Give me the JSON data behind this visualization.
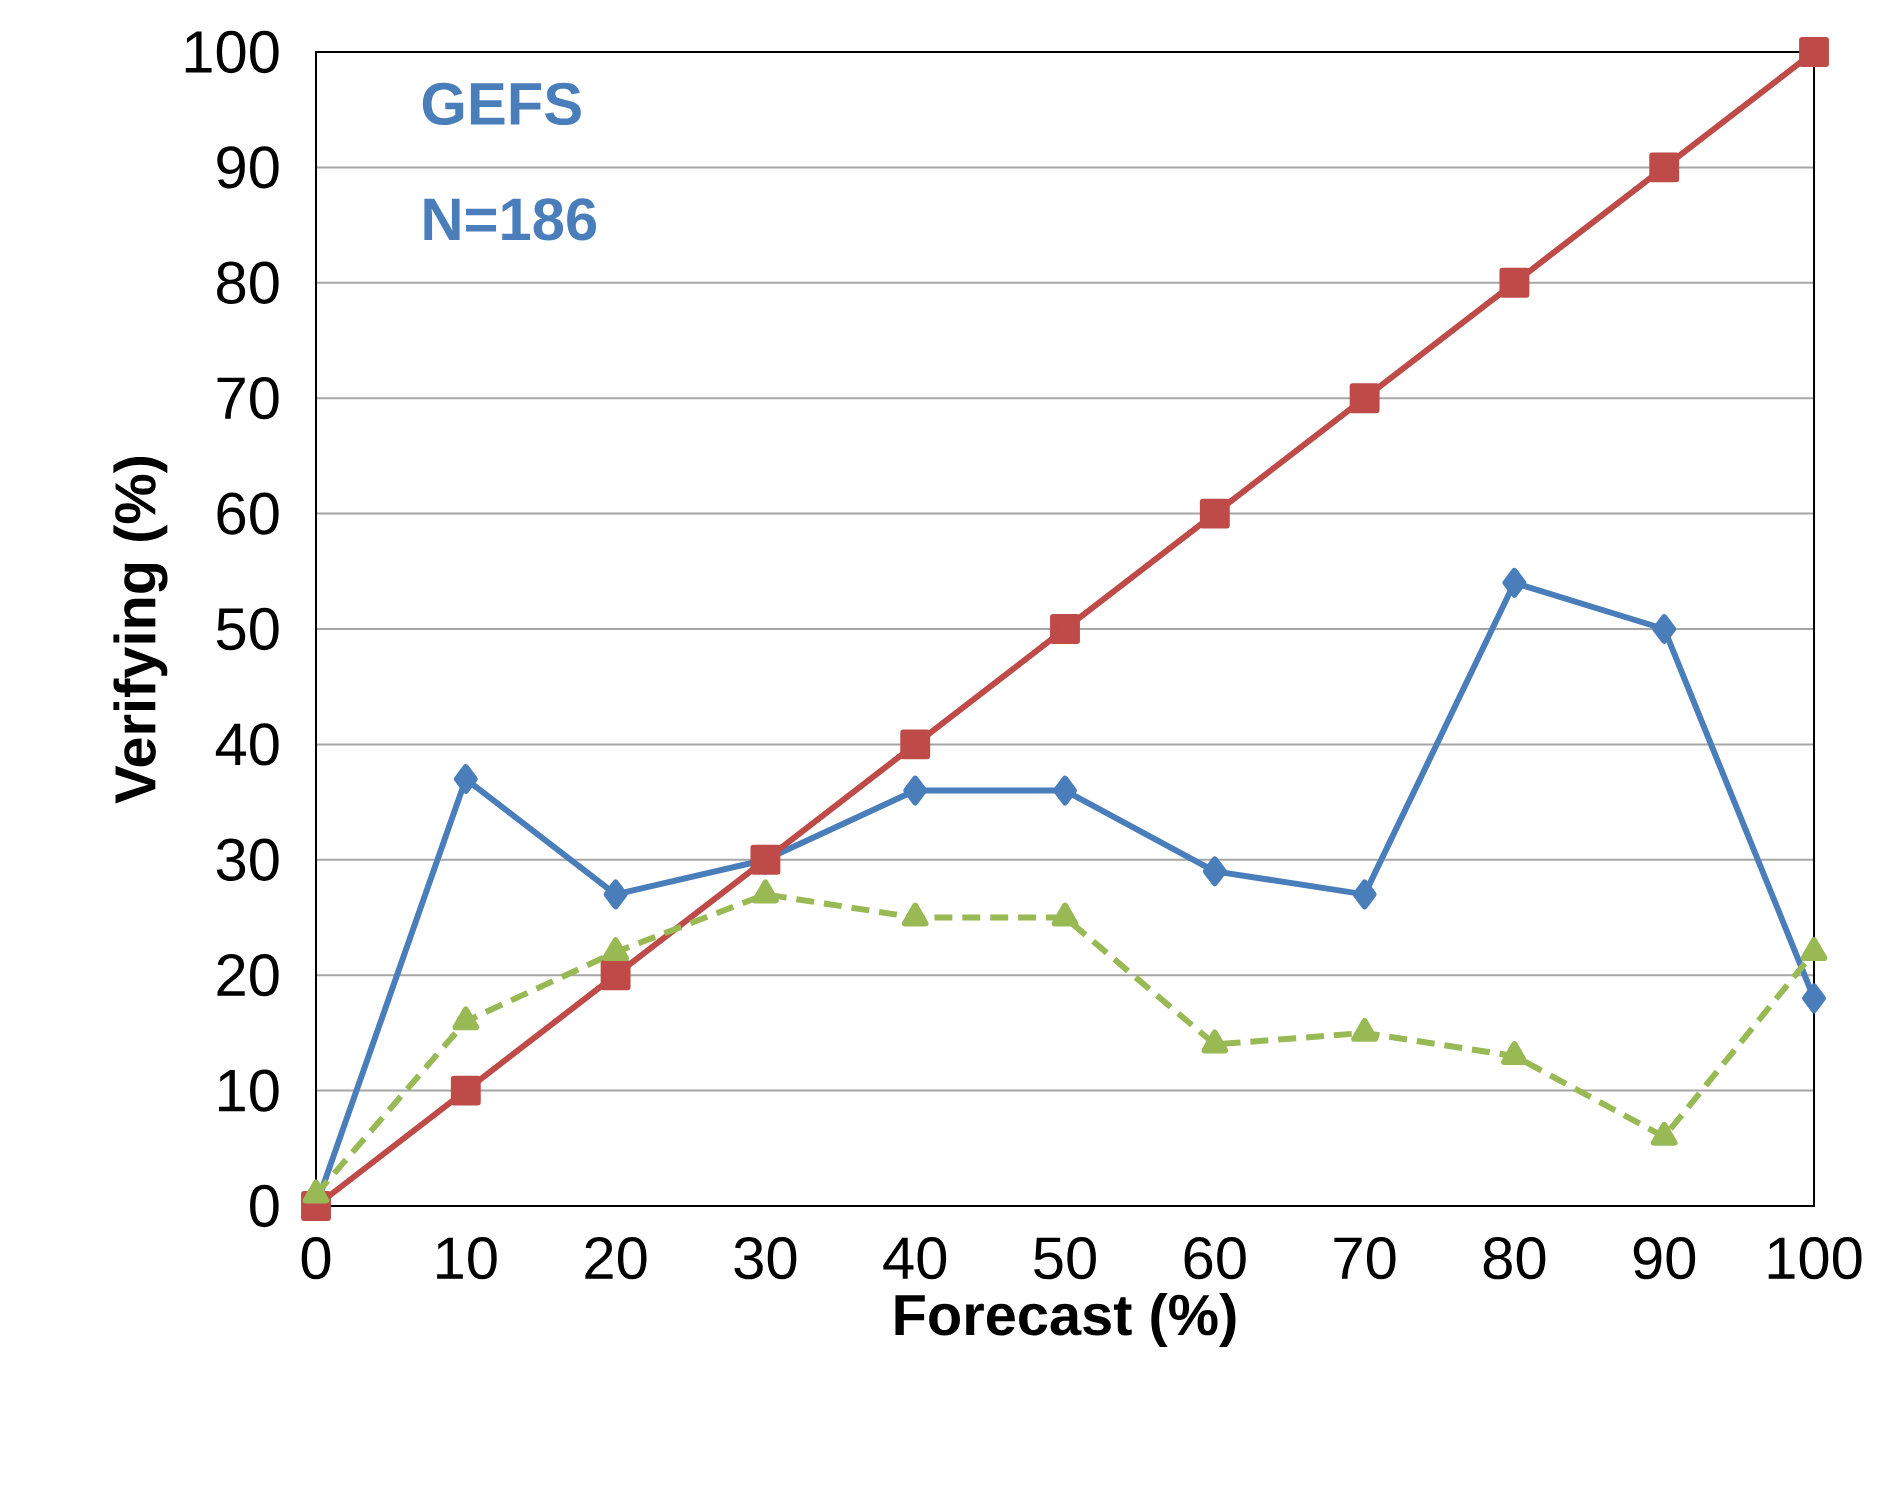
{
  "chart_data": {
    "type": "line",
    "xlabel": "Forecast (%)",
    "ylabel": "Verifying (%)",
    "annotations": [
      "GEFS",
      "N=186"
    ],
    "x": [
      0,
      10,
      20,
      30,
      40,
      50,
      60,
      70,
      80,
      90,
      100
    ],
    "xlim": [
      0,
      100
    ],
    "xticks": [
      0,
      10,
      20,
      30,
      40,
      50,
      60,
      70,
      80,
      90,
      100
    ],
    "ylim": [
      0,
      100
    ],
    "yticks": [
      0,
      10,
      20,
      30,
      40,
      50,
      60,
      70,
      80,
      90,
      100
    ],
    "grid": "y",
    "series": [
      {
        "color": "#4a7ebb",
        "marker": "diamond",
        "line_style": "solid",
        "values": [
          0,
          37,
          27,
          30,
          36,
          36,
          29,
          27,
          54,
          50,
          18
        ]
      },
      {
        "color": "#be4b48",
        "marker": "square",
        "line_style": "solid",
        "values": [
          0,
          10,
          20,
          30,
          40,
          50,
          60,
          70,
          80,
          90,
          100
        ]
      },
      {
        "color": "#98b954",
        "marker": "triangle",
        "line_style": "dashed",
        "values": [
          1,
          16,
          22,
          27,
          25,
          25,
          14,
          15,
          13,
          6,
          22
        ]
      }
    ]
  }
}
